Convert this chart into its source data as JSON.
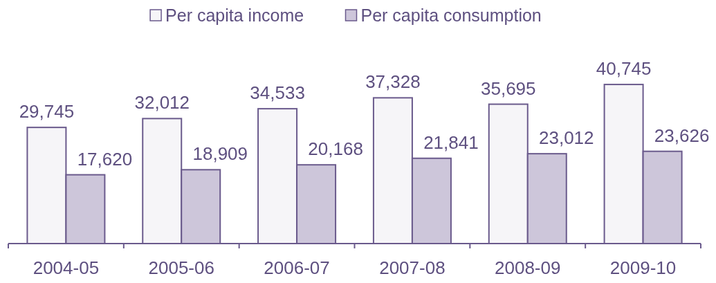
{
  "chart_data": {
    "type": "bar",
    "categories": [
      "2004-05",
      "2005-06",
      "2006-07",
      "2007-08",
      "2008-09",
      "2009-10"
    ],
    "series": [
      {
        "name": "Per capita income",
        "color": "#f6f5f8",
        "values": [
          29745,
          32012,
          34533,
          37328,
          35695,
          40745
        ],
        "value_labels": [
          "29,745",
          "32,012",
          "34,533",
          "37,328",
          "35,695",
          "40,745"
        ]
      },
      {
        "name": "Per capita consumption",
        "color": "#cdc6da",
        "values": [
          17620,
          18909,
          20168,
          21841,
          23012,
          23626
        ],
        "value_labels": [
          "17,620",
          "18,909",
          "20,168",
          "21,841",
          "23,012",
          "23,626"
        ]
      }
    ],
    "legend": "top"
  }
}
